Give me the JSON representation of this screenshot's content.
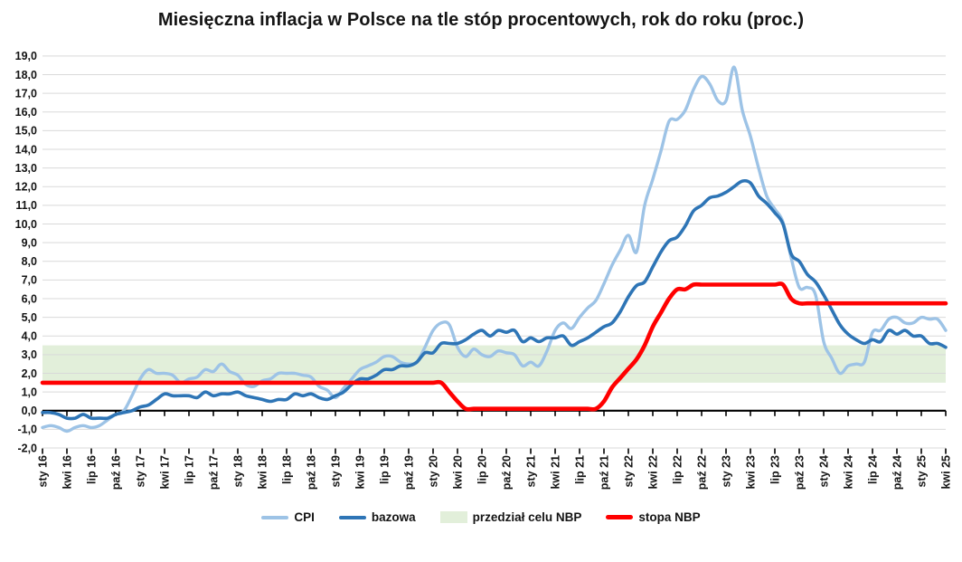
{
  "title": "Miesięczna inflacja w Polsce na tle stóp procentowych, rok do roku (proc.)",
  "colors": {
    "cpi": "#9DC3E6",
    "core": "#2E75B6",
    "rate": "#FF0000",
    "band": "#E2EFDA",
    "grid": "#D9D9D9",
    "axis": "#000000",
    "text": "#141414",
    "background": "#FFFFFF"
  },
  "legend": {
    "items": [
      {
        "label": "CPI",
        "type": "line",
        "color": "#9DC3E6"
      },
      {
        "label": "bazowa",
        "type": "line",
        "color": "#2E75B6"
      },
      {
        "label": "przedział celu NBP",
        "type": "band",
        "color": "#E2EFDA"
      },
      {
        "label": "stopa NBP",
        "type": "rate",
        "color": "#FF0000"
      }
    ]
  },
  "chart_data": {
    "type": "line",
    "title": "Miesięczna inflacja w Polsce na tle stóp procentowych, rok do roku (proc.)",
    "xlabel": "",
    "ylabel": "",
    "ylim": [
      -2,
      19
    ],
    "y_step": 1,
    "grid": true,
    "legend_position": "bottom",
    "x_months_start": "sty 16",
    "x_months_end": "kwi 25",
    "x_tick_every_months": 3,
    "x_tick_labels": [
      "sty 16",
      "kwi 16",
      "lip 16",
      "paź 16",
      "sty 17",
      "kwi 17",
      "lip 17",
      "paź 17",
      "sty 18",
      "kwi 18",
      "lip 18",
      "paź 18",
      "sty 19",
      "kwi 19",
      "lip 19",
      "paź 19",
      "sty 20",
      "kwi 20",
      "lip 20",
      "paź 20",
      "sty 21",
      "kwi 21",
      "lip 21",
      "paź 21",
      "sty 22",
      "kwi 22",
      "lip 22",
      "paź 22",
      "sty 23",
      "kwi 23",
      "lip 23",
      "paź 23",
      "sty 24",
      "kwi 24",
      "lip 24",
      "paź 24",
      "sty 25",
      "kwi 25"
    ],
    "y_tick_labels": [
      "19,0",
      "18,0",
      "17,0",
      "16,0",
      "15,0",
      "14,0",
      "13,0",
      "12,0",
      "11,0",
      "10,0",
      "9,0",
      "8,0",
      "7,0",
      "6,0",
      "5,0",
      "4,0",
      "3,0",
      "2,0",
      "1,0",
      "0,0",
      "-1,0",
      "-2,0"
    ],
    "band": {
      "name": "przedział celu NBP",
      "from": 1.5,
      "to": 3.5
    },
    "series": [
      {
        "name": "CPI",
        "color": "#9DC3E6",
        "values": [
          -0.9,
          -0.8,
          -0.9,
          -1.1,
          -0.9,
          -0.8,
          -0.9,
          -0.8,
          -0.5,
          -0.2,
          0.0,
          0.8,
          1.7,
          2.2,
          2.0,
          2.0,
          1.9,
          1.5,
          1.7,
          1.8,
          2.2,
          2.1,
          2.5,
          2.1,
          1.9,
          1.4,
          1.3,
          1.6,
          1.7,
          2.0,
          2.0,
          2.0,
          1.9,
          1.8,
          1.3,
          1.1,
          0.7,
          1.2,
          1.7,
          2.2,
          2.4,
          2.6,
          2.9,
          2.9,
          2.6,
          2.5,
          2.6,
          3.4,
          4.3,
          4.7,
          4.6,
          3.4,
          2.9,
          3.3,
          3.0,
          2.9,
          3.2,
          3.1,
          3.0,
          2.4,
          2.6,
          2.4,
          3.2,
          4.3,
          4.7,
          4.4,
          5.0,
          5.5,
          5.9,
          6.8,
          7.8,
          8.6,
          9.4,
          8.5,
          11.0,
          12.4,
          13.9,
          15.5,
          15.6,
          16.1,
          17.2,
          17.9,
          17.5,
          16.6,
          16.6,
          18.4,
          16.1,
          14.7,
          13.0,
          11.5,
          10.8,
          10.1,
          8.2,
          6.6,
          6.6,
          6.2,
          3.7,
          2.8,
          2.0,
          2.4,
          2.5,
          2.6,
          4.2,
          4.3,
          4.9,
          5.0,
          4.7,
          4.7,
          5.0,
          4.9,
          4.9,
          4.3
        ]
      },
      {
        "name": "bazowa",
        "color": "#2E75B6",
        "values": [
          -0.1,
          -0.1,
          -0.2,
          -0.4,
          -0.4,
          -0.2,
          -0.4,
          -0.4,
          -0.4,
          -0.2,
          -0.1,
          0.0,
          0.2,
          0.3,
          0.6,
          0.9,
          0.8,
          0.8,
          0.8,
          0.7,
          1.0,
          0.8,
          0.9,
          0.9,
          1.0,
          0.8,
          0.7,
          0.6,
          0.5,
          0.6,
          0.6,
          0.9,
          0.8,
          0.9,
          0.7,
          0.6,
          0.8,
          1.0,
          1.4,
          1.7,
          1.7,
          1.9,
          2.2,
          2.2,
          2.4,
          2.4,
          2.6,
          3.1,
          3.1,
          3.6,
          3.6,
          3.6,
          3.8,
          4.1,
          4.3,
          4.0,
          4.3,
          4.2,
          4.3,
          3.7,
          3.9,
          3.7,
          3.9,
          3.9,
          4.0,
          3.5,
          3.7,
          3.9,
          4.2,
          4.5,
          4.7,
          5.3,
          6.1,
          6.7,
          6.9,
          7.7,
          8.5,
          9.1,
          9.3,
          9.9,
          10.7,
          11.0,
          11.4,
          11.5,
          11.7,
          12.0,
          12.3,
          12.2,
          11.5,
          11.1,
          10.6,
          10.0,
          8.4,
          8.0,
          7.3,
          6.9,
          6.2,
          5.4,
          4.6,
          4.1,
          3.8,
          3.6,
          3.8,
          3.7,
          4.3,
          4.1,
          4.3,
          4.0,
          4.0,
          3.6,
          3.6,
          3.4
        ]
      },
      {
        "name": "stopa NBP",
        "color": "#FF0000",
        "values": [
          1.5,
          1.5,
          1.5,
          1.5,
          1.5,
          1.5,
          1.5,
          1.5,
          1.5,
          1.5,
          1.5,
          1.5,
          1.5,
          1.5,
          1.5,
          1.5,
          1.5,
          1.5,
          1.5,
          1.5,
          1.5,
          1.5,
          1.5,
          1.5,
          1.5,
          1.5,
          1.5,
          1.5,
          1.5,
          1.5,
          1.5,
          1.5,
          1.5,
          1.5,
          1.5,
          1.5,
          1.5,
          1.5,
          1.5,
          1.5,
          1.5,
          1.5,
          1.5,
          1.5,
          1.5,
          1.5,
          1.5,
          1.5,
          1.5,
          1.5,
          1.0,
          0.5,
          0.1,
          0.1,
          0.1,
          0.1,
          0.1,
          0.1,
          0.1,
          0.1,
          0.1,
          0.1,
          0.1,
          0.1,
          0.1,
          0.1,
          0.1,
          0.1,
          0.1,
          0.5,
          1.25,
          1.75,
          2.25,
          2.75,
          3.5,
          4.5,
          5.25,
          6.0,
          6.5,
          6.5,
          6.75,
          6.75,
          6.75,
          6.75,
          6.75,
          6.75,
          6.75,
          6.75,
          6.75,
          6.75,
          6.75,
          6.75,
          6.0,
          5.75,
          5.75,
          5.75,
          5.75,
          5.75,
          5.75,
          5.75,
          5.75,
          5.75,
          5.75,
          5.75,
          5.75,
          5.75,
          5.75,
          5.75,
          5.75,
          5.75,
          5.75,
          5.75
        ]
      }
    ]
  }
}
